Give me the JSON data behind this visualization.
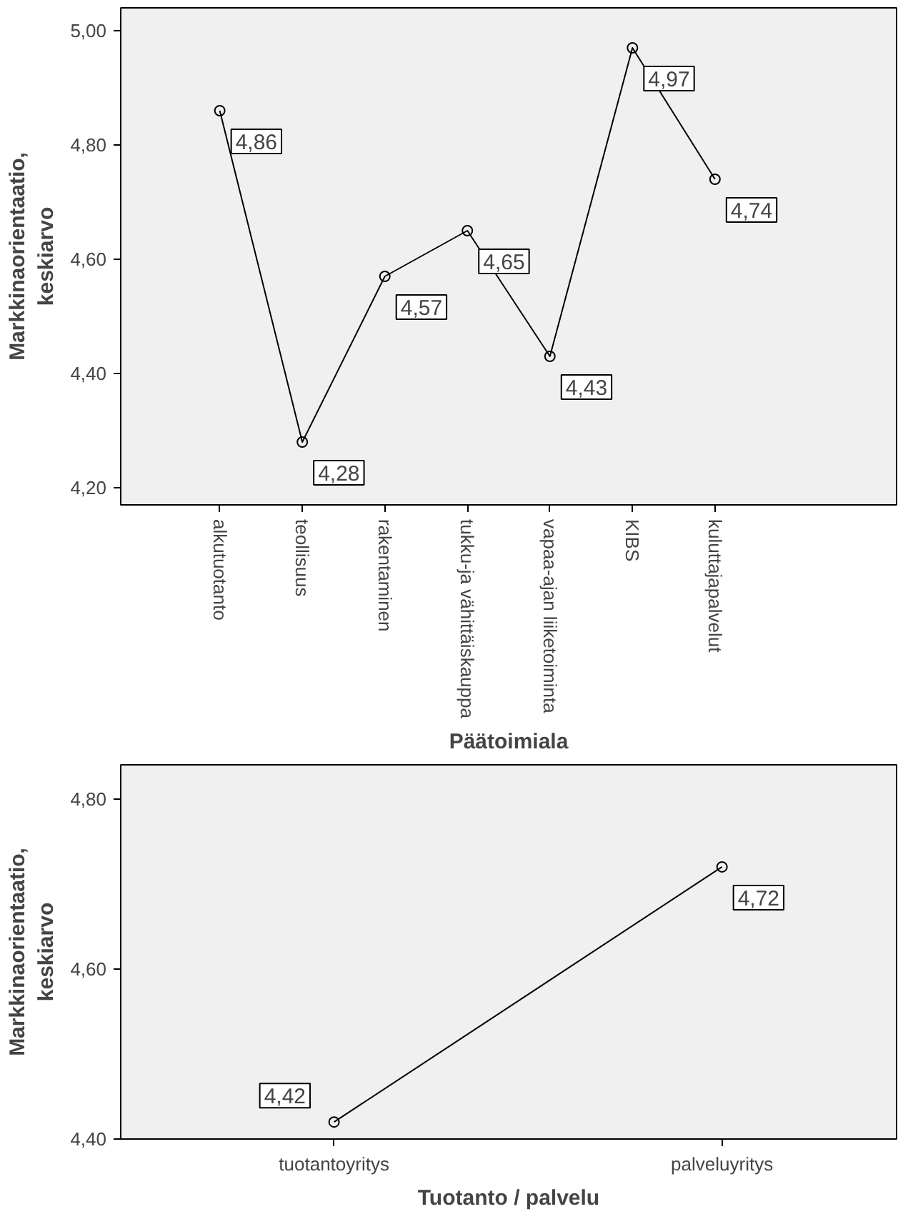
{
  "chart_data": [
    {
      "type": "line",
      "xlabel": "Päätoimiala",
      "ylabel": "Markkinaorientaatio,\nkeskiarvo",
      "categories": [
        "alkutuotanto",
        "teollisuus",
        "rakentaminen",
        "tukku-ja vähittäiskauppa",
        "vapaa-ajan liiketoiminta",
        "KIBS",
        "kuluttajapalvelut"
      ],
      "series": [
        {
          "color": "#000000",
          "values": [
            4.86,
            4.28,
            4.57,
            4.65,
            4.43,
            4.97,
            4.74
          ],
          "value_labels": [
            "4,86",
            "4,28",
            "4,57",
            "4,65",
            "4,43",
            "4,97",
            "4,74"
          ]
        }
      ],
      "ylim": [
        4.17,
        5.04
      ],
      "yticks": [
        {
          "value": 4.2,
          "label": "4,20"
        },
        {
          "value": 4.4,
          "label": "4,40"
        },
        {
          "value": 4.6,
          "label": "4,60"
        },
        {
          "value": 4.8,
          "label": "4,80"
        },
        {
          "value": 5.0,
          "label": "5,00"
        }
      ],
      "marker": "circle",
      "grid": false,
      "line_style": "solid"
    },
    {
      "type": "line",
      "xlabel": "Tuotanto / palvelu",
      "ylabel": "Markkinaorientaatio,\nkeskiarvo",
      "categories": [
        "tuotantoyritys",
        "palveluyritys"
      ],
      "series": [
        {
          "color": "#000000",
          "values": [
            4.42,
            4.72
          ],
          "value_labels": [
            "4,42",
            "4,72"
          ]
        }
      ],
      "ylim": [
        4.4,
        4.84
      ],
      "yticks": [
        {
          "value": 4.4,
          "label": "4,40"
        },
        {
          "value": 4.6,
          "label": "4,60"
        },
        {
          "value": 4.8,
          "label": "4,80"
        }
      ],
      "marker": "circle",
      "grid": false,
      "line_style": "solid"
    }
  ]
}
